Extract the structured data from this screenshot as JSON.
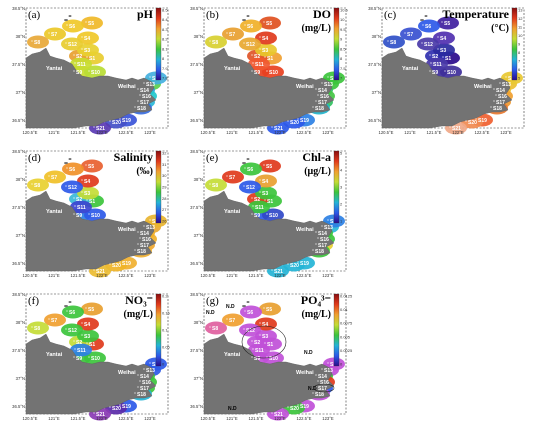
{
  "cities": {
    "yantai": "Yantai",
    "weihai": "Weihai"
  },
  "axes": {
    "lat_ticks": [
      "38.5°N",
      "38°N",
      "37.5°N",
      "37°N",
      "36.5°N"
    ],
    "lon_ticks": [
      "120.5°E",
      "121°E",
      "121.5°E",
      "122°E",
      "122.5°E",
      "123°E"
    ]
  },
  "stations": [
    "S1",
    "S2",
    "S3",
    "S4",
    "S5",
    "S6",
    "S7",
    "S8",
    "S9",
    "S10",
    "S11",
    "S12",
    "S13",
    "S14",
    "S15",
    "S16",
    "S17",
    "S18",
    "S19",
    "S20",
    "S21"
  ],
  "panels": [
    {
      "id": "a",
      "letter": "(a)",
      "title": "pH",
      "unit": "",
      "colorbar": {
        "colors": [
          "#2b0a8c",
          "#2c59e8",
          "#24b4d6",
          "#3cc43c",
          "#c4dc36",
          "#f0a030",
          "#e03a1c",
          "#8a0e10"
        ],
        "ticks": [
          "8.5",
          "8.4",
          "8.3",
          "8.2",
          "8.1",
          "8",
          "7.9",
          "7.8"
        ]
      },
      "colors": {
        "S1": "#e8cc30",
        "S2": "#e8a030",
        "S3": "#e8d030",
        "S4": "#f0c828",
        "S5": "#f0b828",
        "S6": "#f0c828",
        "S7": "#ecc828",
        "S8": "#e8a838",
        "S9": "#c8dc30",
        "S10": "#b8dc34",
        "S11": "#c8dc30",
        "S12": "#e8cc30",
        "S13": "#5ad04c",
        "S14": "#2ea0e0",
        "S15": "#44b0e0",
        "S16": "#22c8cc",
        "S17": "#2ab8d8",
        "S18": "#3a6ee0",
        "S19": "#3a54d8",
        "S20": "#4450c8",
        "S21": "#5a3ab4"
      }
    },
    {
      "id": "b",
      "letter": "(b)",
      "title": "DO",
      "unit": "(mg/L)",
      "colorbar": {
        "colors": [
          "#2b0a8c",
          "#2c59e8",
          "#24b4d6",
          "#3cc43c",
          "#c4dc36",
          "#f0a030",
          "#e03a1c",
          "#8a0e10"
        ],
        "ticks": [
          "10.5",
          "10",
          "9.5",
          "9",
          "8.5",
          "8",
          "7.5",
          "7"
        ]
      },
      "colors": {
        "S1": "#f0a030",
        "S2": "#e05428",
        "S3": "#e8c82c",
        "S4": "#e03a1c",
        "S5": "#e05020",
        "S6": "#f0b028",
        "S7": "#e8a030",
        "S8": "#d8d030",
        "S9": "#e84020",
        "S10": "#e84020",
        "S11": "#f05830",
        "S12": "#e8a830",
        "S13": "#3cc43c",
        "S14": "#34c468",
        "S15": "#3cc43c",
        "S16": "#44c444",
        "S17": "#30c060",
        "S18": "#22b4cc",
        "S19": "#2c80e4",
        "S20": "#2c59e8",
        "S21": "#2c59e8"
      }
    },
    {
      "id": "c",
      "letter": "(c)",
      "title": "Temperature",
      "unit": "(°C)",
      "colorbar": {
        "colors": [
          "#2b0a8c",
          "#2c59e8",
          "#24b4d6",
          "#3cc43c",
          "#c4dc36",
          "#f0a030",
          "#e03a1c",
          "#8a0e10"
        ],
        "ticks": [
          "13",
          "12",
          "11",
          "10",
          "9",
          "8",
          "7",
          "6",
          "5"
        ]
      },
      "colors": {
        "S1": "#2a0a8c",
        "S2": "#3030b0",
        "S3": "#2a2aa0",
        "S4": "#5030b0",
        "S5": "#4020a0",
        "S6": "#2c59e8",
        "S7": "#3850d0",
        "S8": "#3050c8",
        "S9": "#3e2e9a",
        "S10": "#3e2e9a",
        "S11": "#4a3aa8",
        "S12": "#4a3aa8",
        "S13": "#ecc030",
        "S14": "#ecc030",
        "S15": "#e8c832",
        "S16": "#f0a030",
        "S17": "#ee9830",
        "S18": "#e87830",
        "S19": "#f06030",
        "S20": "#f08a50",
        "S21": "#f0a888"
      }
    },
    {
      "id": "d",
      "letter": "(d)",
      "title": "Salinity",
      "unit": "(‰)",
      "colorbar": {
        "colors": [
          "#2b0a8c",
          "#2c59e8",
          "#24b4d6",
          "#3cc43c",
          "#c4dc36",
          "#f0a030",
          "#e03a1c",
          "#8a0e10"
        ],
        "ticks": [
          "32",
          "31",
          "30",
          "29",
          "28",
          "27",
          "26"
        ]
      },
      "colors": {
        "S1": "#3cc43c",
        "S2": "#3ab8d8",
        "S3": "#c4dc36",
        "S4": "#e03a1c",
        "S5": "#e86030",
        "S6": "#f09028",
        "S7": "#f0c028",
        "S8": "#e8d030",
        "S9": "#2c80e4",
        "S10": "#2c59e8",
        "S11": "#3c44d0",
        "S12": "#2c59e8",
        "S13": "#e8a830",
        "S14": "#f0b028",
        "S15": "#e8b430",
        "S16": "#f0b028",
        "S17": "#f0a830",
        "S18": "#f0b030",
        "S19": "#f0b030",
        "S20": "#f0b428",
        "S21": "#ecbc30"
      }
    },
    {
      "id": "e",
      "letter": "(e)",
      "title": "Chl-a",
      "unit": "(μg/L)",
      "colorbar": {
        "colors": [
          "#2b0a8c",
          "#2c59e8",
          "#24b4d6",
          "#3cc43c",
          "#c4dc36",
          "#f0a030",
          "#e03a1c",
          "#8a0e10"
        ],
        "ticks": [
          "5",
          "4",
          "3",
          "2",
          "1"
        ]
      },
      "colors": {
        "S1": "#3cc43c",
        "S2": "#e03a1c",
        "S3": "#3cc43c",
        "S4": "#e8a030",
        "S5": "#e03a1c",
        "S6": "#3cc43c",
        "S7": "#e03a1c",
        "S8": "#c4dc36",
        "S9": "#2c59e8",
        "S10": "#3048c8",
        "S11": "#3cc43c",
        "S12": "#2c59e8",
        "S13": "#2ab8d8",
        "S14": "#3cc43c",
        "S15": "#2c80e4",
        "S16": "#3cc43c",
        "S17": "#e8d030",
        "S18": "#3cc43c",
        "S19": "#24b4d6",
        "S20": "#24b4d6",
        "S21": "#24b4d6"
      }
    },
    {
      "id": "f",
      "letter": "(f)",
      "title": "NO₃⁻",
      "unit": "(mg/L)",
      "colorbar": {
        "colors": [
          "#2b0a8c",
          "#2c59e8",
          "#24b4d6",
          "#3cc43c",
          "#c4dc36",
          "#f0a030",
          "#e03a1c",
          "#8a0e10"
        ],
        "ticks": [
          "0.2",
          "0.15",
          "0.1",
          "0.05",
          "0"
        ]
      },
      "colors": {
        "S1": "#e03a1c",
        "S2": "#c4dc36",
        "S3": "#3cc43c",
        "S4": "#e03a1c",
        "S5": "#e8a030",
        "S6": "#3cc43c",
        "S7": "#f0a030",
        "S8": "#c4dc36",
        "S9": "#3cc43c",
        "S10": "#3cc43c",
        "S11": "#2c80e4",
        "S12": "#3cc43c",
        "S13": "#2c59e8",
        "S14": "#3cc43c",
        "S15": "#2c59e8",
        "S16": "#3cc43c",
        "S17": "#3cc43c",
        "S18": "#24b4d6",
        "S19": "#2c59e8",
        "S20": "#5a2aa8",
        "S21": "#8a3ab4"
      }
    },
    {
      "id": "g",
      "letter": "(g)",
      "title": "PO₄³⁻",
      "unit": "(mg/L)",
      "colorbar": {
        "colors": [
          "#2b0a8c",
          "#2c59e8",
          "#24b4d6",
          "#3cc43c",
          "#c4dc36",
          "#f0a030",
          "#e03a1c",
          "#8a0e10"
        ],
        "ticks": [
          "0.0125",
          "0.01",
          "0.0075",
          "0.005",
          "0.0025",
          "0"
        ]
      },
      "colors": {
        "S1": "#c050d8",
        "S2": "#c050d8",
        "S3": "#c050d8",
        "S4": "#e03a1c",
        "S5": "#e8a030",
        "S6": "#c050d8",
        "S7": "#f0a030",
        "S8": "#e060a0",
        "S9": "#c050d8",
        "S10": "#c050d8",
        "S11": "#c050d8",
        "S12": "#c050d8",
        "S13": "#c050d8",
        "S14": "#3cc43c",
        "S15": "#c050d8",
        "S16": "#e03a1c",
        "S17": "#2c59e8",
        "S18": "#c050d8",
        "S19": "#c050d8",
        "S20": "#3cc43c",
        "S21": "#c050d8"
      },
      "nd_labels": [
        "N.D",
        "N.D",
        "N.D",
        "N.D",
        "N.D"
      ]
    }
  ]
}
